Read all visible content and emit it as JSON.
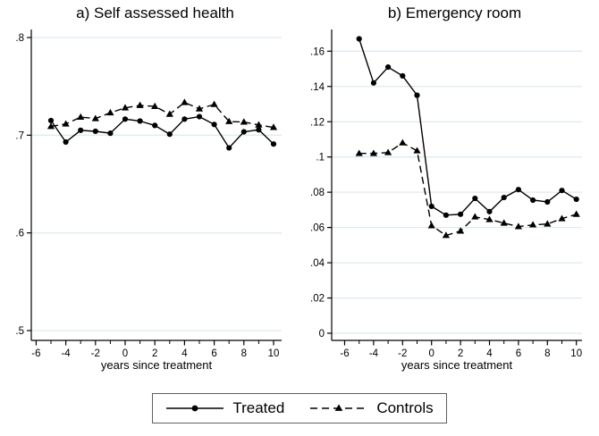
{
  "colors": {
    "line": "#000000",
    "grid": "#dfeaf0",
    "axis": "#000000",
    "text": "#000000",
    "background": "#ffffff"
  },
  "legend": {
    "entries": [
      {
        "label": "Treated",
        "marker": "circle",
        "line": "solid"
      },
      {
        "label": "Controls",
        "marker": "triangle",
        "line": "dashed"
      }
    ]
  },
  "chart_data": [
    {
      "type": "line",
      "title": "a) Self assessed health",
      "xlabel": "years since treatment",
      "x": [
        -5,
        -4,
        -3,
        -2,
        -1,
        0,
        1,
        2,
        3,
        4,
        5,
        6,
        7,
        8,
        9,
        10
      ],
      "series": [
        {
          "name": "Treated",
          "marker": "circle",
          "line": "solid",
          "values": [
            0.715,
            0.693,
            0.705,
            0.704,
            0.702,
            0.7165,
            0.7145,
            0.71,
            0.701,
            0.7165,
            0.719,
            0.711,
            0.687,
            0.7035,
            0.7055,
            0.691
          ]
        },
        {
          "name": "Controls",
          "marker": "triangle",
          "line": "dashed",
          "values": [
            0.709,
            0.7115,
            0.7185,
            0.717,
            0.723,
            0.728,
            0.7305,
            0.7295,
            0.7215,
            0.7335,
            0.727,
            0.7315,
            0.714,
            0.7135,
            0.7105,
            0.708
          ]
        }
      ],
      "ylim": [
        0.5,
        0.8
      ],
      "yticks": [
        0.5,
        0.6,
        0.7,
        0.8
      ],
      "ytick_labels": [
        ".5",
        ".6",
        ".7",
        ".8"
      ],
      "xlim": [
        -6,
        10
      ],
      "xticks": [
        -6,
        -4,
        -2,
        0,
        2,
        4,
        6,
        8,
        10
      ],
      "xtick_labels": [
        "-6",
        "-4",
        "-2",
        "0",
        "2",
        "4",
        "6",
        "8",
        "10"
      ],
      "minor_xticks": [
        -5,
        -3,
        -1,
        1,
        3,
        5,
        7,
        9
      ],
      "grid": true,
      "legend_position": "bottom"
    },
    {
      "type": "line",
      "title": "b) Emergency room",
      "xlabel": "years since treatment",
      "x": [
        -5,
        -4,
        -3,
        -2,
        -1,
        0,
        1,
        2,
        3,
        4,
        5,
        6,
        7,
        8,
        9,
        10
      ],
      "series": [
        {
          "name": "Treated",
          "marker": "circle",
          "line": "solid",
          "values": [
            0.167,
            0.142,
            0.151,
            0.146,
            0.135,
            0.072,
            0.067,
            0.0675,
            0.0765,
            0.069,
            0.077,
            0.0815,
            0.0755,
            0.0745,
            0.081,
            0.076
          ]
        },
        {
          "name": "Controls",
          "marker": "triangle",
          "line": "dashed",
          "values": [
            0.102,
            0.102,
            0.1025,
            0.108,
            0.1035,
            0.061,
            0.0555,
            0.058,
            0.066,
            0.0645,
            0.0625,
            0.0605,
            0.0615,
            0.062,
            0.065,
            0.0675
          ]
        }
      ],
      "ylim": [
        0,
        0.16
      ],
      "yticks": [
        0,
        0.02,
        0.04,
        0.06,
        0.08,
        0.1,
        0.12,
        0.14,
        0.16
      ],
      "ytick_labels": [
        "0",
        ".02",
        ".04",
        ".06",
        ".08",
        ".1",
        ".12",
        ".14",
        ".16"
      ],
      "xlim": [
        -6,
        10
      ],
      "xticks": [
        -6,
        -4,
        -2,
        0,
        2,
        4,
        6,
        8,
        10
      ],
      "xtick_labels": [
        "-6",
        "-4",
        "-2",
        "0",
        "2",
        "4",
        "6",
        "8",
        "10"
      ],
      "minor_xticks": [
        -5,
        -3,
        -1,
        1,
        3,
        5,
        7,
        9
      ],
      "grid": true,
      "legend_position": "bottom"
    }
  ]
}
